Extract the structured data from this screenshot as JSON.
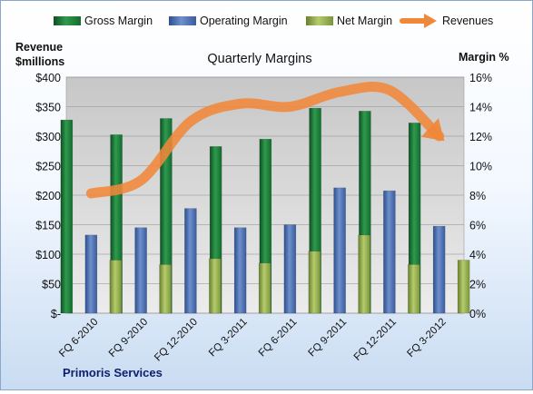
{
  "chart_data": {
    "type": "bar",
    "title": "Quarterly Margins",
    "subtitle": "",
    "ylabel_left": [
      "Revenue",
      "$millions"
    ],
    "ylabel_right": "Margin %",
    "xlabel": "",
    "footer_label": "Primoris Services",
    "categories": [
      "FQ 6-2010",
      "FQ 9-2010",
      "FQ 12-2010",
      "FQ 3-2011",
      "FQ 6-2011",
      "FQ 9-2011",
      "FQ 12-2011",
      "FQ 3-2012"
    ],
    "left_axis": {
      "min": 0,
      "max": 400,
      "step": 50,
      "tick_labels": [
        "$-",
        "$50",
        "$100",
        "$150",
        "$200",
        "$250",
        "$300",
        "$350",
        "$400"
      ]
    },
    "right_axis": {
      "min": 0,
      "max": 16,
      "step": 2,
      "tick_labels": [
        "0%",
        "2%",
        "4%",
        "6%",
        "8%",
        "10%",
        "12%",
        "14%",
        "16%"
      ]
    },
    "grid": true,
    "legend_position": "top",
    "series": [
      {
        "name": "Gross Margin",
        "kind": "bar",
        "axis": "left",
        "color": "#1f7a3a",
        "values": [
          13.1,
          12.1,
          13.2,
          11.3,
          11.8,
          13.9,
          13.7,
          12.9
        ]
      },
      {
        "name": "Operating Margin",
        "kind": "bar",
        "axis": "left",
        "color": "#4a6fb0",
        "values": [
          5.3,
          5.8,
          7.1,
          5.8,
          6.0,
          8.5,
          8.3,
          5.9
        ]
      },
      {
        "name": "Net Margin",
        "kind": "bar",
        "axis": "left",
        "color": "#8fa845",
        "values": [
          3.6,
          3.3,
          3.7,
          3.4,
          4.2,
          5.3,
          3.3,
          3.6
        ]
      },
      {
        "name": "Revenues",
        "kind": "line",
        "axis": "left",
        "color": "#f0883a",
        "values": [
          203,
          225,
          325,
          355,
          350,
          375,
          378,
          300
        ]
      }
    ]
  }
}
